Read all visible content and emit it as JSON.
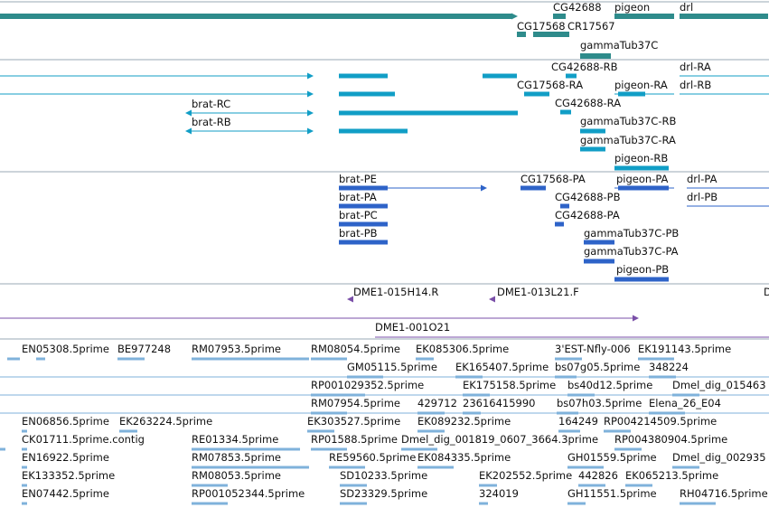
{
  "colors": {
    "gene": "#2e8b8b",
    "mrna": "#119ec6",
    "protein": "#2e63c8",
    "clone": "#7a4fa8",
    "est": "#7fb2db",
    "track_line": "#9aa9b6"
  },
  "gene_track": {
    "labels": [
      "CG42688",
      "pigeon",
      "drl",
      "CG17568",
      "CR17567",
      "gammaTub37C"
    ]
  },
  "mrna_track": {
    "labels": [
      "CG42688-RB",
      "drl-RA",
      "CG17568-RA",
      "pigeon-RA",
      "drl-RB",
      "brat-RC",
      "CG42688-RA",
      "brat-RB",
      "gammaTub37C-RB",
      "gammaTub37C-RA",
      "pigeon-RB"
    ]
  },
  "protein_track": {
    "labels": [
      "brat-PE",
      "CG17568-PA",
      "pigeon-PA",
      "drl-PA",
      "brat-PA",
      "CG42688-PB",
      "drl-PB",
      "brat-PC",
      "CG42688-PA",
      "brat-PB",
      "gammaTub37C-PB",
      "gammaTub37C-PA",
      "pigeon-PB"
    ]
  },
  "clone_track": {
    "labels": [
      "DME1-015H14.R",
      "DME1-013L21.F",
      "D",
      "DME1-001O21"
    ]
  },
  "est_track": {
    "labels": [
      "EN05308.5prime",
      "BE977248",
      "RM07953.5prime",
      "RM08054.5prime",
      "EK085306.5prime",
      "3'EST-Nfly-006",
      "EK191143.5prime",
      "GM05115.5prime",
      "EK165407.5prime",
      "bs07g05.5prime",
      "348224",
      "RP001029352.5prime",
      "EK175158.5prime",
      "bs40d12.5prime",
      "Dmel_dig_015463",
      "RM07954.5prime",
      "429712",
      "23616415990",
      "bs07h03.5prime",
      "Elena_26_E04",
      "EN06856.5prime",
      "EK263224.5prime",
      "EK303527.5prime",
      "EK089232.5prime",
      "164249",
      "RP004214509.5prime",
      "CK01711.5prime.contig",
      "RE01334.5prime",
      "RP01588.5prime",
      "Dmel_dig_001819_0607_3664.3prime",
      "RP004380904.5prime",
      "EN16922.5prime",
      "RM07853.5prime",
      "RE59560.5prime",
      "EK084335.5prime",
      "GH01559.5prime",
      "Dmel_dig_002935",
      "EK133352.5prime",
      "RM08053.5prime",
      "SD10233.5prime",
      "EK202552.5prime",
      "442826",
      "EK065213.5prime",
      "EN07442.5prime",
      "RP001052344.5prime",
      "SD23329.5prime",
      "324019",
      "GH11551.5prime",
      "RH04716.5prime"
    ]
  }
}
